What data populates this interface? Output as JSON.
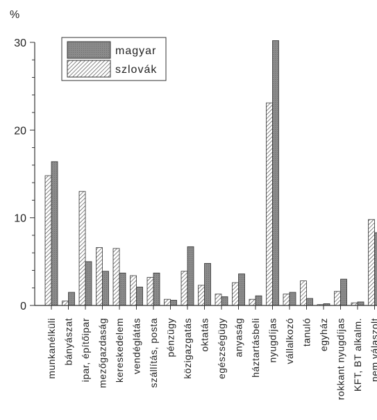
{
  "chart_data": {
    "type": "bar",
    "unit_label": "%",
    "ylim": [
      0,
      30
    ],
    "yticks": [
      0,
      10,
      20,
      30
    ],
    "grid": false,
    "legend_position": "top-left",
    "categories": [
      "munkanélküli",
      "bányászat",
      "ipar, építőipar",
      "mezőgazdaság",
      "kereskedelem",
      "vendéglátás",
      "szállítás, posta",
      "pénzügy",
      "közigazgatás",
      "oktatás",
      "egészségügy",
      "anyaság",
      "háztartásbeli",
      "nyugdíjas",
      "vállalkozó",
      "tanuló",
      "egyház",
      "rokkant nyugdíjas",
      "KFT, BT alkalm.",
      "nem válaszolt"
    ],
    "series": [
      {
        "name": "szlovák",
        "pattern": "hatched",
        "values": [
          14.8,
          0.5,
          13.0,
          6.6,
          6.5,
          3.4,
          3.2,
          0.7,
          3.9,
          2.3,
          1.3,
          2.6,
          0.7,
          23.1,
          1.3,
          2.8,
          0.1,
          1.6,
          0.3,
          9.8
        ]
      },
      {
        "name": "magyar",
        "pattern": "dark",
        "values": [
          16.4,
          1.5,
          5.0,
          3.9,
          3.7,
          2.1,
          3.7,
          0.6,
          6.7,
          4.8,
          1.0,
          3.6,
          1.1,
          30.2,
          1.5,
          0.8,
          0.2,
          3.0,
          0.4,
          8.3
        ]
      }
    ],
    "colors": {
      "magyar_fill": "#8a8a8a",
      "hatch_line": "#444444",
      "axis": "#333333"
    }
  }
}
